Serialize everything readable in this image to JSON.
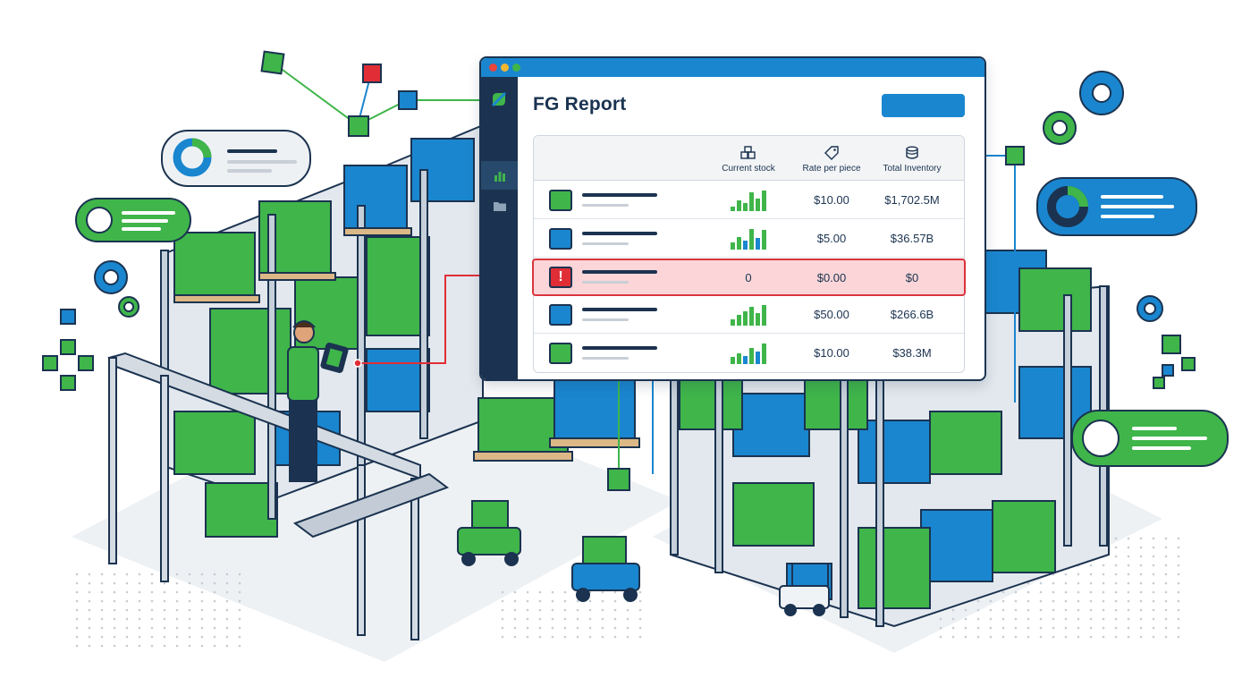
{
  "app": {
    "title": "FG Report",
    "columns": [
      {
        "label": "Current stock",
        "icon": "boxes-icon"
      },
      {
        "label": "Rate per piece",
        "icon": "price-tag-icon"
      },
      {
        "label": "Total Inventory",
        "icon": "coin-stack-icon"
      }
    ],
    "rows": [
      {
        "status": "green",
        "stock_bars": [
          0.2,
          0.45,
          0.35,
          0.8,
          0.55,
          0.9
        ],
        "bar_color": "green",
        "rate": "$10.00",
        "total": "$1,702.5M"
      },
      {
        "status": "blue",
        "stock_bars": [
          0.3,
          0.55,
          0.4,
          0.9,
          0.5,
          0.85
        ],
        "bar_color": "mixed",
        "rate": "$5.00",
        "total": "$36.57B"
      },
      {
        "status": "alert",
        "stock": "0",
        "alert_symbol": "!",
        "rate": "$0.00",
        "total": "$0"
      },
      {
        "status": "blue",
        "stock_bars": [
          0.25,
          0.45,
          0.6,
          0.8,
          0.55,
          0.9
        ],
        "bar_color": "green",
        "rate": "$50.00",
        "total": "$266.6B"
      },
      {
        "status": "green",
        "stock_bars": [
          0.3,
          0.45,
          0.35,
          0.7,
          0.55,
          0.9
        ],
        "bar_color": "mixed",
        "rate": "$10.00",
        "total": "$38.3M"
      }
    ],
    "sidebar": [
      {
        "icon": "bar-chart-icon",
        "active": true
      },
      {
        "icon": "folder-icon",
        "active": false
      }
    ]
  },
  "colors": {
    "navy": "#1b3350",
    "blue": "#1a86cf",
    "green": "#3fb54a",
    "alert": "#e12e36",
    "alert_bg": "#fbd5d8"
  }
}
